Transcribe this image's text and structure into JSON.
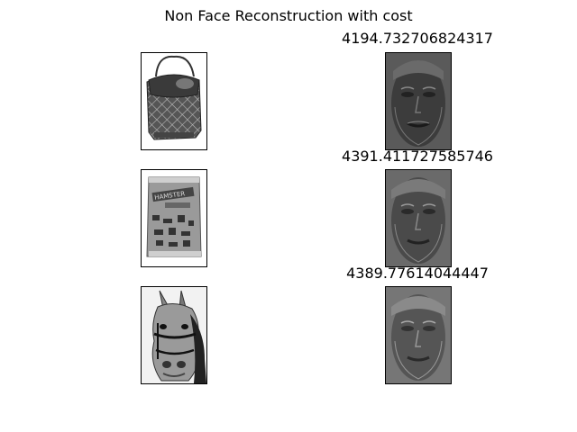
{
  "figure": {
    "title": "Non Face Reconstruction with cost"
  },
  "rows": [
    {
      "original": {
        "subject": "quilted handbag",
        "icon": "handbag-image"
      },
      "reconstruction": {
        "subject": "eigenface reconstruction",
        "icon": "face-reconstruction-image"
      },
      "cost": "4194.732706824317"
    },
    {
      "original": {
        "subject": "snack bag package",
        "icon": "snack-bag-image"
      },
      "reconstruction": {
        "subject": "eigenface reconstruction",
        "icon": "face-reconstruction-image"
      },
      "cost": "4391.411727585746"
    },
    {
      "original": {
        "subject": "horse head with bridle",
        "icon": "horse-image"
      },
      "reconstruction": {
        "subject": "eigenface reconstruction",
        "icon": "face-reconstruction-image"
      },
      "cost": "4389.77614044447"
    }
  ]
}
